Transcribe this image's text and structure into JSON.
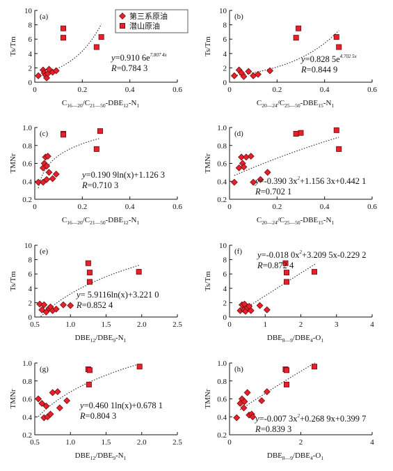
{
  "colors": {
    "marker_fill": "#e8202a",
    "marker_stroke": "#6b0d12",
    "axis": "#111111"
  },
  "legend": {
    "position": "top-center",
    "entries": [
      {
        "name": "第三系原油",
        "marker": "diamond"
      },
      {
        "name": "潜山原油",
        "marker": "square"
      }
    ]
  },
  "chart_data": [
    {
      "panel": "(a)",
      "type": "scatter",
      "xlabel": {
        "base": "C",
        "s1": "16—20",
        "m1": "/C",
        "s2": "21—50",
        "m2": "-DBE",
        "s3": "12",
        "m3": "-N",
        "s4": "1"
      },
      "ylabel": "Ts/Tm",
      "xlim": [
        0,
        0.6
      ],
      "ylim": [
        0,
        10
      ],
      "xticks": [
        "0",
        "0.2",
        "0.4",
        "0.6"
      ],
      "yticks": [
        "0",
        "2",
        "4",
        "6",
        "8",
        "10"
      ],
      "grid": false,
      "equation": {
        "lhs": "y",
        "text": "=0.910 6e",
        "sup": "7.807 4x"
      },
      "r_text": "=0.784 3",
      "fit": {
        "kind": "exp",
        "a": 0.9106,
        "b": 7.8074,
        "x_range": [
          0.02,
          0.28
        ]
      },
      "series": [
        {
          "name": "第三系原油",
          "marker": "diamond",
          "points": [
            [
              0.015,
              0.9
            ],
            [
              0.035,
              1.7
            ],
            [
              0.04,
              1.3
            ],
            [
              0.045,
              1.0
            ],
            [
              0.05,
              0.6
            ],
            [
              0.055,
              1.2
            ],
            [
              0.06,
              1.8
            ],
            [
              0.075,
              1.4
            ],
            [
              0.09,
              1.6
            ]
          ]
        },
        {
          "name": "潜山原油",
          "marker": "square",
          "points": [
            [
              0.12,
              7.5
            ],
            [
              0.12,
              6.2
            ],
            [
              0.26,
              4.9
            ],
            [
              0.28,
              6.3
            ]
          ]
        }
      ]
    },
    {
      "panel": "(b)",
      "type": "scatter",
      "xlabel": {
        "base": "C",
        "s1": "20—24",
        "m1": "/C",
        "s2": "25—50",
        "m2": "-DBE",
        "s3": "15",
        "m3": "-N",
        "s4": "1"
      },
      "ylabel": "Ts/Tm",
      "xlim": [
        0,
        0.6
      ],
      "ylim": [
        0,
        10
      ],
      "xticks": [
        "0",
        "0.2",
        "0.4",
        "0.6"
      ],
      "yticks": [
        "0",
        "2",
        "4",
        "6",
        "8",
        "10"
      ],
      "grid": false,
      "equation": {
        "lhs": "y",
        "text": "=0.828 5e",
        "sup": "4.702 5x"
      },
      "r_text": "=0.844 9",
      "fit": {
        "kind": "exp",
        "a": 0.8285,
        "b": 4.7025,
        "x_range": [
          0.02,
          0.46
        ]
      },
      "series": [
        {
          "name": "第三系原油",
          "marker": "diamond",
          "points": [
            [
              0.02,
              0.9
            ],
            [
              0.04,
              1.7
            ],
            [
              0.05,
              1.3
            ],
            [
              0.06,
              0.8
            ],
            [
              0.08,
              1.5
            ],
            [
              0.1,
              0.9
            ],
            [
              0.12,
              1.1
            ],
            [
              0.17,
              1.6
            ]
          ]
        },
        {
          "name": "潜山原油",
          "marker": "square",
          "points": [
            [
              0.28,
              6.2
            ],
            [
              0.29,
              7.5
            ],
            [
              0.45,
              6.3
            ],
            [
              0.46,
              4.9
            ]
          ]
        }
      ]
    },
    {
      "panel": "(c)",
      "type": "scatter",
      "xlabel": {
        "base": "C",
        "s1": "16—20",
        "m1": "/C",
        "s2": "21—50",
        "m2": "-DBE",
        "s3": "12",
        "m3": "-N",
        "s4": "1"
      },
      "ylabel": "TMNr",
      "xlim": [
        0,
        0.6
      ],
      "ylim": [
        0.2,
        1.0
      ],
      "xticks": [
        "0",
        "0.2",
        "0.4",
        "0.6"
      ],
      "yticks": [
        "0.2",
        "0.4",
        "0.6",
        "0.8",
        "1.0"
      ],
      "grid": false,
      "equation": {
        "lhs": "y",
        "text": "=0.190 9ln(x)+1.126 3",
        "sup": ""
      },
      "r_text": "=0.710 3",
      "fit": {
        "kind": "ln",
        "a": 0.1909,
        "b": 1.1263,
        "x_range": [
          0.015,
          0.27
        ]
      },
      "series": [
        {
          "name": "第三系原油",
          "marker": "diamond",
          "points": [
            [
              0.015,
              0.39
            ],
            [
              0.035,
              0.55
            ],
            [
              0.035,
              0.39
            ],
            [
              0.04,
              0.6
            ],
            [
              0.045,
              0.67
            ],
            [
              0.05,
              0.42
            ],
            [
              0.05,
              0.57
            ],
            [
              0.055,
              0.68
            ],
            [
              0.06,
              0.5
            ],
            [
              0.075,
              0.43
            ],
            [
              0.09,
              0.48
            ]
          ]
        },
        {
          "name": "潜山原油",
          "marker": "square",
          "points": [
            [
              0.12,
              0.93
            ],
            [
              0.12,
              0.92
            ],
            [
              0.26,
              0.76
            ],
            [
              0.275,
              0.96
            ]
          ]
        }
      ]
    },
    {
      "panel": "(d)",
      "type": "scatter",
      "xlabel": {
        "base": "C",
        "s1": "20—24",
        "m1": "/C",
        "s2": "25—50",
        "m2": "-DBE",
        "s3": "15",
        "m3": "-N",
        "s4": "1"
      },
      "ylabel": "TMNr",
      "xlim": [
        0,
        0.6
      ],
      "ylim": [
        0.2,
        1.0
      ],
      "xticks": [
        "0",
        "0.2",
        "0.4",
        "0.6"
      ],
      "yticks": [
        "0.2",
        "0.4",
        "0.6",
        "0.8",
        "1.0"
      ],
      "grid": false,
      "equation": {
        "lhs": "y",
        "text": "=-0.390 3x",
        "sup": "2",
        "tail": "+1.156 3x+0.442 1"
      },
      "r_text": "=0.702 1",
      "fit": {
        "kind": "poly2",
        "a": -0.3903,
        "b": 1.1563,
        "c": 0.4421,
        "x_range": [
          0.02,
          0.46
        ]
      },
      "series": [
        {
          "name": "第三系原油",
          "marker": "diamond",
          "points": [
            [
              0.02,
              0.39
            ],
            [
              0.04,
              0.55
            ],
            [
              0.05,
              0.67
            ],
            [
              0.055,
              0.6
            ],
            [
              0.06,
              0.56
            ],
            [
              0.07,
              0.67
            ],
            [
              0.09,
              0.68
            ],
            [
              0.1,
              0.39
            ],
            [
              0.13,
              0.42
            ],
            [
              0.16,
              0.5
            ]
          ]
        },
        {
          "name": "潜山原油",
          "marker": "square",
          "points": [
            [
              0.28,
              0.93
            ],
            [
              0.3,
              0.94
            ],
            [
              0.45,
              0.97
            ],
            [
              0.46,
              0.76
            ]
          ]
        }
      ]
    },
    {
      "panel": "(e)",
      "type": "scatter",
      "xlabel": {
        "base": "DBE",
        "s1": "12",
        "m1": "/DBE",
        "s2": "9",
        "m2": "-N",
        "s3": "1",
        "m3": "",
        "s4": ""
      },
      "ylabel": "Ts/Tm",
      "xlim": [
        0.5,
        2.5
      ],
      "ylim": [
        0,
        10
      ],
      "xticks": [
        "0.5",
        "1.0",
        "1.5",
        "2.0",
        "2.5"
      ],
      "yticks": [
        "0",
        "2",
        "4",
        "6",
        "8",
        "10"
      ],
      "grid": false,
      "equation": {
        "lhs": "y",
        "text": "= 5.9116ln(x)+3.221 0",
        "sup": ""
      },
      "r_text": "=0.852 4",
      "fit": {
        "kind": "ln",
        "a": 5.9116,
        "b": 3.221,
        "x_range": [
          0.55,
          1.97
        ]
      },
      "series": [
        {
          "name": "第三系原油",
          "marker": "diamond",
          "points": [
            [
              0.57,
              1.8
            ],
            [
              0.6,
              1.0
            ],
            [
              0.63,
              1.7
            ],
            [
              0.66,
              0.7
            ],
            [
              0.7,
              1.2
            ],
            [
              0.72,
              1.4
            ],
            [
              0.75,
              0.9
            ],
            [
              0.8,
              1.1
            ],
            [
              0.9,
              1.7
            ],
            [
              1.0,
              1.6
            ]
          ]
        },
        {
          "name": "潜山原油",
          "marker": "square",
          "points": [
            [
              1.25,
              7.5
            ],
            [
              1.27,
              6.2
            ],
            [
              1.27,
              4.9
            ],
            [
              1.96,
              6.3
            ]
          ]
        }
      ]
    },
    {
      "panel": "(f)",
      "type": "scatter",
      "xlabel": {
        "base": "DBE",
        "s1": "8—9",
        "m1": "/DBE",
        "s2": "4",
        "m2": "-O",
        "s3": "1",
        "m3": "",
        "s4": ""
      },
      "ylabel": "Ts/Tm",
      "xlim": [
        0,
        4
      ],
      "ylim": [
        0,
        10
      ],
      "xticks": [
        "0",
        "1",
        "2",
        "3",
        "4"
      ],
      "yticks": [
        "0",
        "2",
        "4",
        "6",
        "8",
        "10"
      ],
      "grid": false,
      "equation": {
        "lhs": "y",
        "text": "=-0.018 0x",
        "sup": "2",
        "tail": "+3.209 5x-0.229 2"
      },
      "r_text": "=0.872 4",
      "fit": {
        "kind": "poly2",
        "a": -0.018,
        "b": 3.2095,
        "c": -0.2292,
        "x_range": [
          0.3,
          2.4
        ]
      },
      "series": [
        {
          "name": "第三系原油",
          "marker": "diamond",
          "points": [
            [
              0.3,
              0.9
            ],
            [
              0.35,
              1.7
            ],
            [
              0.4,
              1.0
            ],
            [
              0.42,
              1.8
            ],
            [
              0.45,
              0.8
            ],
            [
              0.5,
              1.3
            ],
            [
              0.55,
              1.5
            ],
            [
              0.6,
              0.9
            ],
            [
              0.85,
              1.6
            ],
            [
              1.05,
              1.0
            ]
          ]
        },
        {
          "name": "潜山原油",
          "marker": "square",
          "points": [
            [
              1.57,
              7.5
            ],
            [
              1.6,
              6.2
            ],
            [
              1.6,
              4.9
            ],
            [
              2.38,
              6.3
            ]
          ]
        }
      ]
    },
    {
      "panel": "(g)",
      "type": "scatter",
      "xlabel": {
        "base": "DBE",
        "s1": "12",
        "m1": "/DBE",
        "s2": "9",
        "m2": "-N",
        "s3": "1",
        "m3": "",
        "s4": ""
      },
      "ylabel": "TMNr",
      "xlim": [
        0.5,
        2.5
      ],
      "ylim": [
        0.2,
        1.0
      ],
      "xticks": [
        "0.5",
        "1.0",
        "1.5",
        "2.0",
        "2.5"
      ],
      "yticks": [
        "0.2",
        "0.4",
        "0.6",
        "0.8",
        "1.0"
      ],
      "grid": false,
      "equation": {
        "lhs": "y",
        "text": "=0.460 1ln(x)+0.678 1",
        "sup": ""
      },
      "r_text": "=0.804 3",
      "fit": {
        "kind": "ln",
        "a": 0.4601,
        "b": 0.6781,
        "x_range": [
          0.55,
          1.97
        ]
      },
      "series": [
        {
          "name": "第三系原油",
          "marker": "diamond",
          "points": [
            [
              0.55,
              0.6
            ],
            [
              0.6,
              0.55
            ],
            [
              0.63,
              0.39
            ],
            [
              0.66,
              0.52
            ],
            [
              0.68,
              0.4
            ],
            [
              0.72,
              0.43
            ],
            [
              0.75,
              0.67
            ],
            [
              0.82,
              0.68
            ],
            [
              0.85,
              0.5
            ],
            [
              0.95,
              0.58
            ]
          ]
        },
        {
          "name": "潜山原油",
          "marker": "square",
          "points": [
            [
              1.25,
              0.93
            ],
            [
              1.27,
              0.92
            ],
            [
              1.26,
              0.76
            ],
            [
              1.97,
              0.96
            ]
          ]
        }
      ]
    },
    {
      "panel": "(h)",
      "type": "scatter",
      "xlabel": {
        "base": "DBE",
        "s1": "8—9",
        "m1": "/DBE",
        "s2": "4",
        "m2": "-O",
        "s3": "1",
        "m3": "",
        "s4": ""
      },
      "ylabel": "TMNr",
      "xlim": [
        0,
        4
      ],
      "ylim": [
        0.2,
        1.0
      ],
      "xticks": [
        "0",
        "2",
        "4"
      ],
      "yticks": [
        "0.2",
        "0.4",
        "0.6",
        "0.8",
        "1.0"
      ],
      "grid": false,
      "equation": {
        "lhs": "y",
        "text": "=-0.007 3x",
        "sup": "2",
        "tail": "+0.268 9x+0.399 7"
      },
      "r_text": "=0.839 3",
      "fit": {
        "kind": "poly2",
        "a": -0.0073,
        "b": 0.2689,
        "c": 0.3997,
        "x_range": [
          0.3,
          2.4
        ]
      },
      "series": [
        {
          "name": "第三系原油",
          "marker": "diamond",
          "points": [
            [
              0.2,
              0.39
            ],
            [
              0.3,
              0.55
            ],
            [
              0.35,
              0.6
            ],
            [
              0.4,
              0.5
            ],
            [
              0.42,
              0.57
            ],
            [
              0.5,
              0.67
            ],
            [
              0.55,
              0.42
            ],
            [
              0.62,
              0.43
            ],
            [
              0.65,
              0.4
            ],
            [
              0.9,
              0.58
            ],
            [
              1.05,
              0.68
            ]
          ]
        },
        {
          "name": "潜山原油",
          "marker": "square",
          "points": [
            [
              1.57,
              0.93
            ],
            [
              1.6,
              0.92
            ],
            [
              1.6,
              0.76
            ],
            [
              2.38,
              0.96
            ]
          ]
        }
      ]
    }
  ]
}
